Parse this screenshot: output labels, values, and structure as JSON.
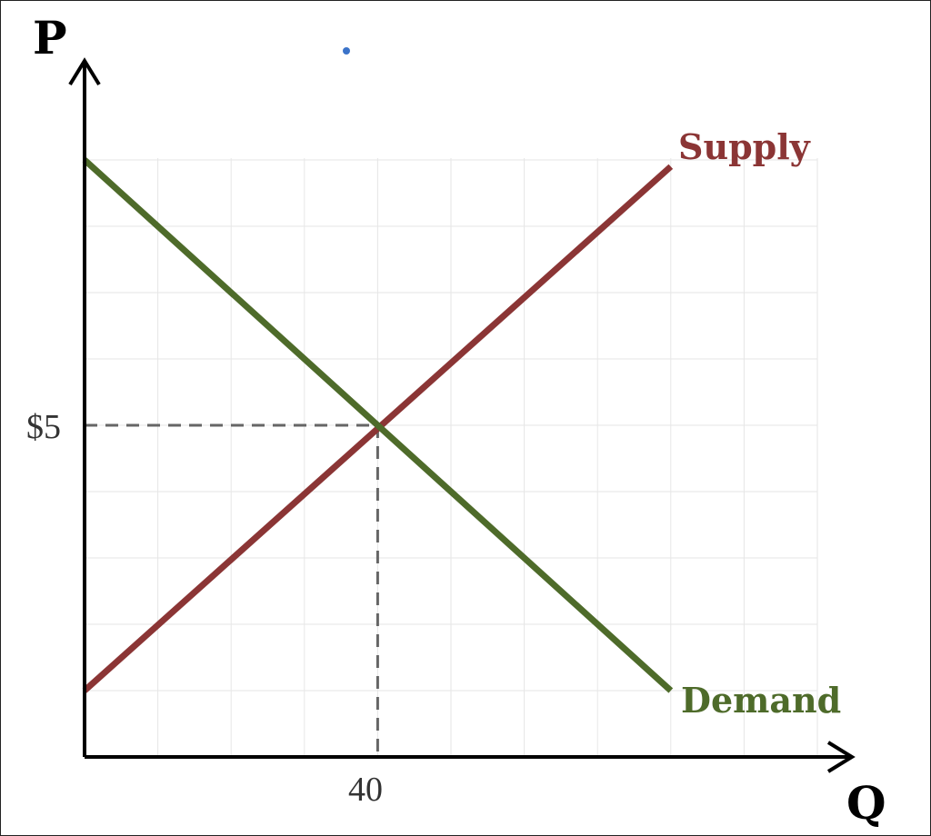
{
  "chart_data": {
    "type": "line",
    "title": "",
    "xlabel": "Q",
    "ylabel": "P",
    "xlim": [
      0,
      100
    ],
    "ylim": [
      0,
      9
    ],
    "grid": true,
    "series": [
      {
        "name": "Supply",
        "color": "#8B3535",
        "x": [
          0,
          80
        ],
        "y": [
          1,
          8.9
        ]
      },
      {
        "name": "Demand",
        "color": "#4E6B2A",
        "x": [
          0,
          80
        ],
        "y": [
          9,
          1
        ]
      }
    ],
    "equilibrium": {
      "x": 40,
      "y": 5,
      "x_label": "40",
      "y_label": "$5"
    },
    "colors": {
      "axis": "#000000",
      "grid": "#e6e6e6",
      "guide": "#666666",
      "marker": "#3b73c9"
    }
  }
}
